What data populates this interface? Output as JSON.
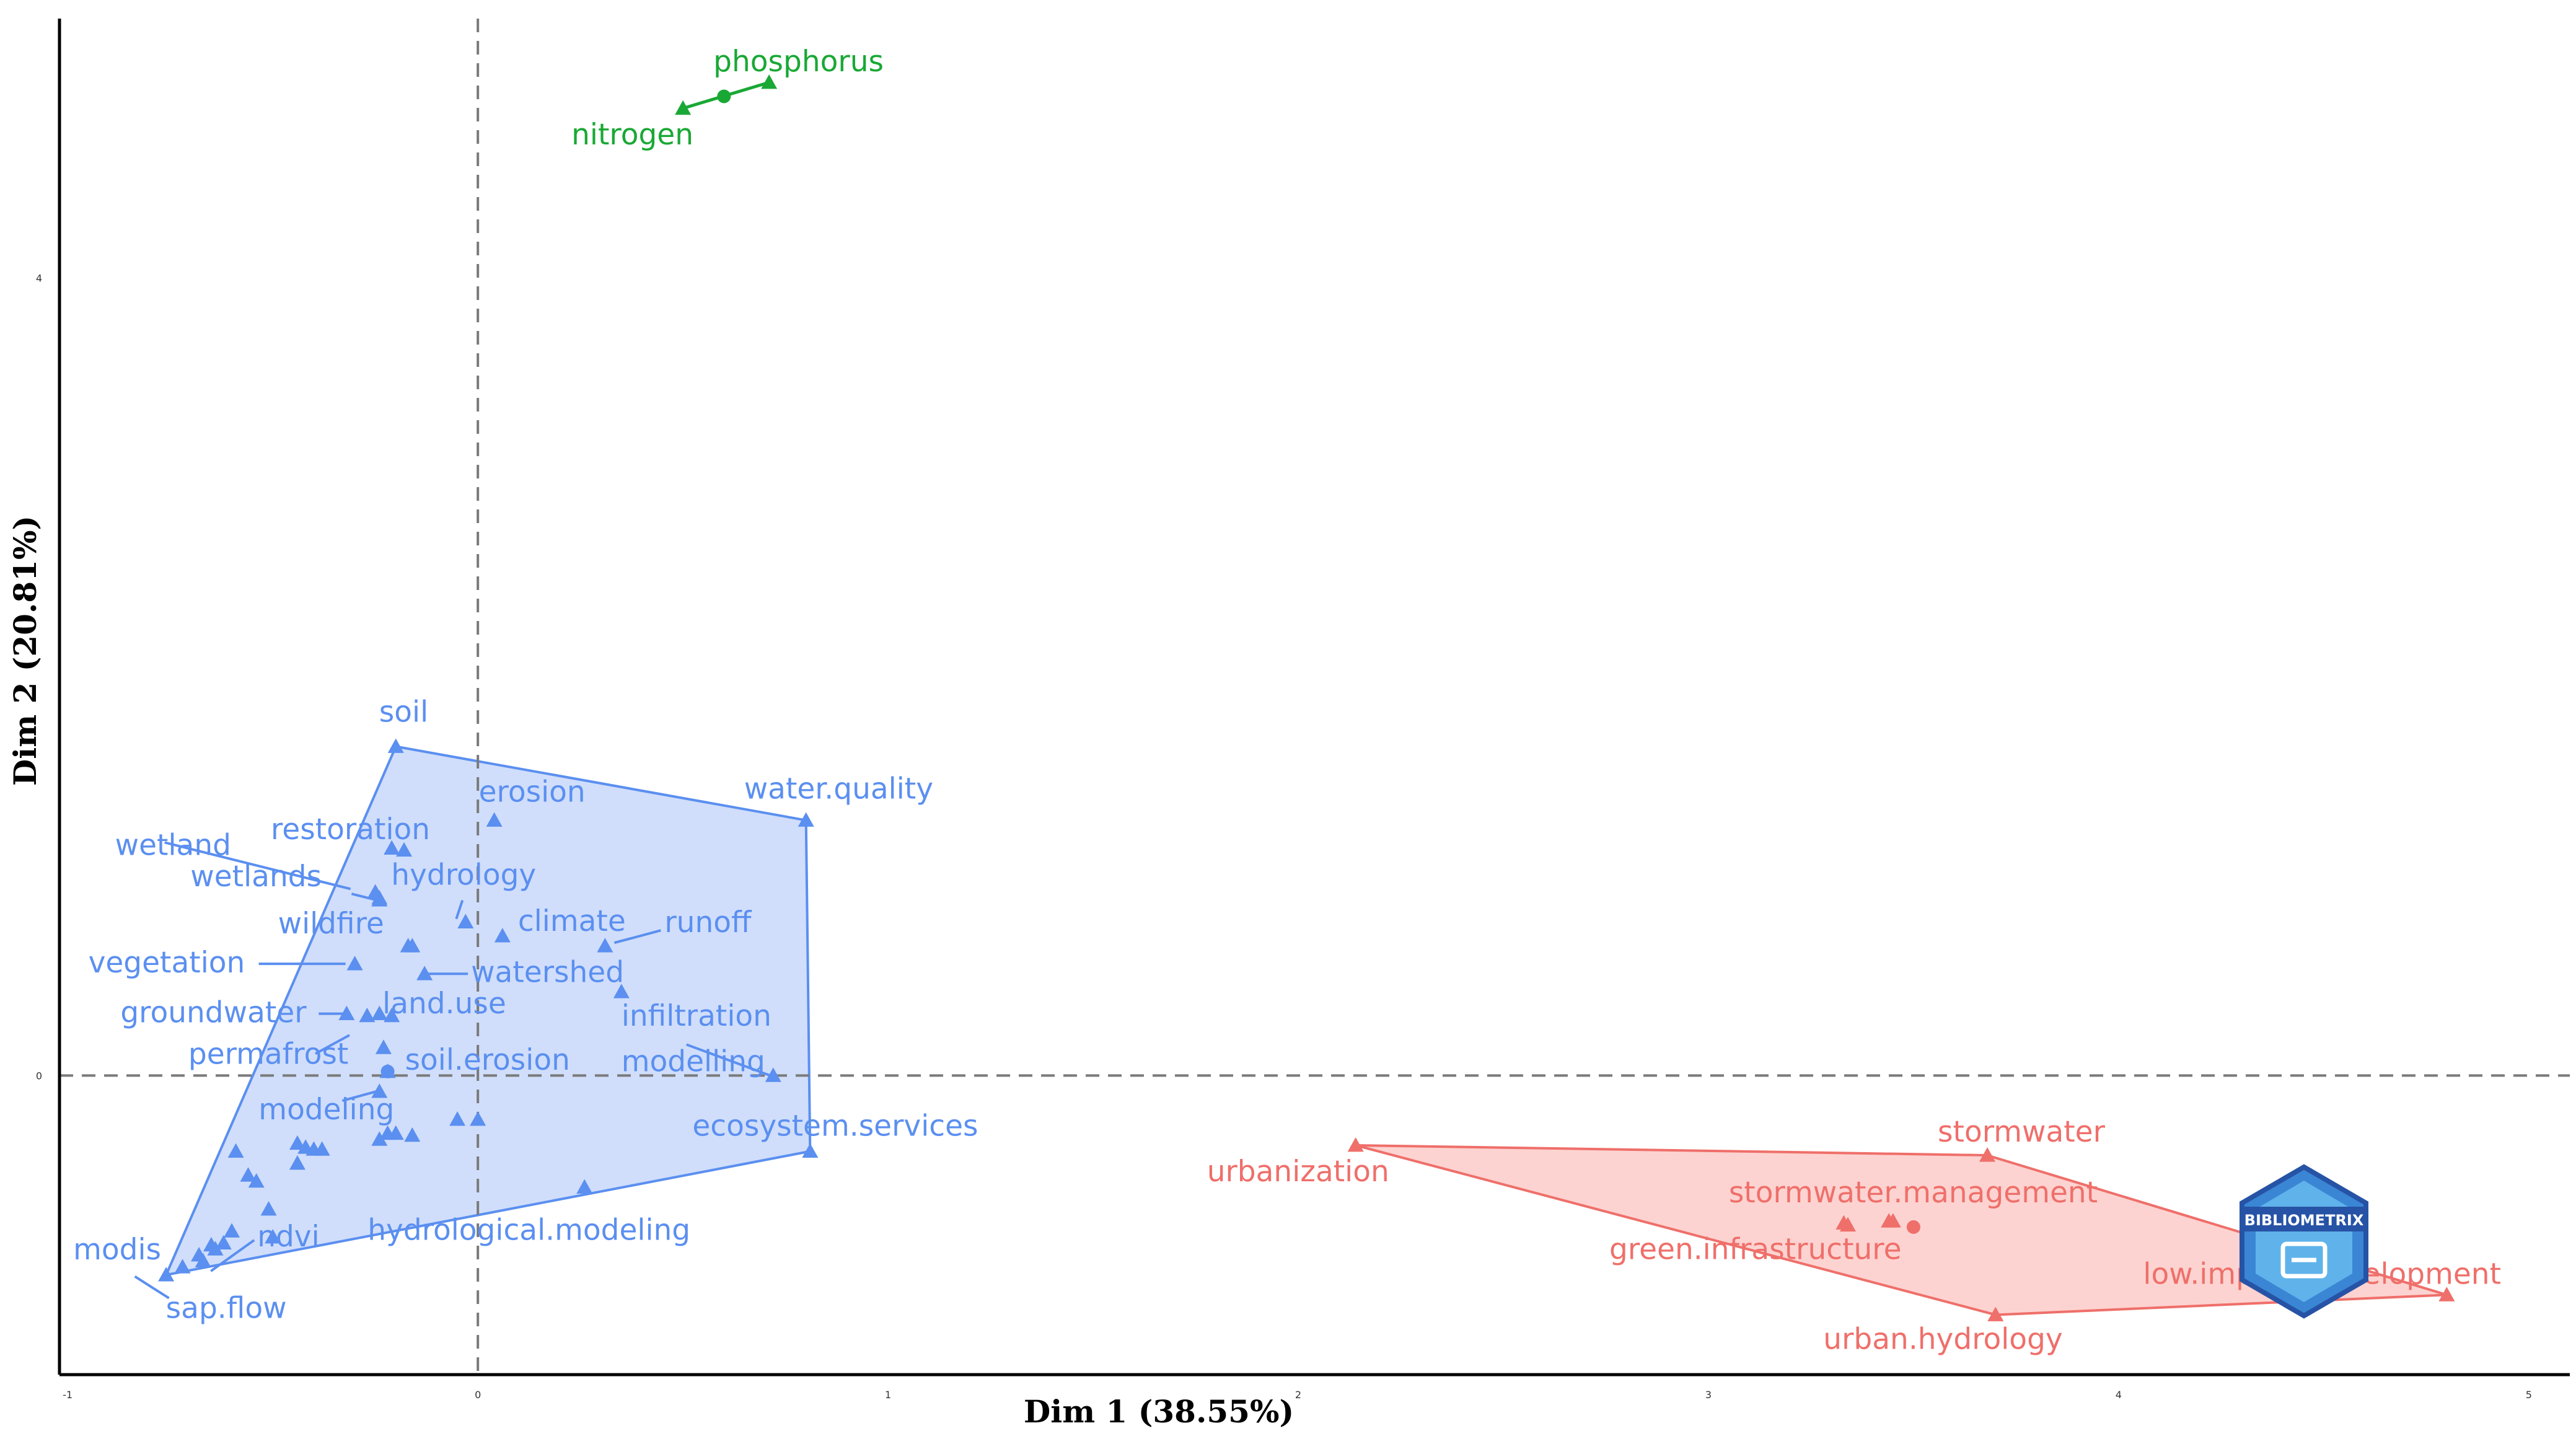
{
  "chart_data": {
    "type": "scatter",
    "title": "",
    "xlabel": "Dim 1 (38.55%)",
    "ylabel": "Dim 2 (20.81%)",
    "xlim": [
      -1.02,
      5.1
    ],
    "ylim": [
      -1.5,
      5.3
    ],
    "xticks": [
      "-1",
      "0",
      "1",
      "2",
      "3",
      "4",
      "5"
    ],
    "yticks": [
      "0",
      "4"
    ],
    "reference_lines": {
      "x": 0,
      "y": 0
    },
    "clusters": [
      {
        "name": "cluster-1",
        "color": "#5b8ff0",
        "fill": "#cddcfb",
        "hull": [
          [
            -0.2,
            1.65
          ],
          [
            0.8,
            1.28
          ],
          [
            0.81,
            -0.38
          ],
          [
            -0.76,
            -1.0
          ]
        ],
        "points": [
          {
            "label": "soil",
            "x": -0.2,
            "y": 1.65
          },
          {
            "label": "water.quality",
            "x": 0.8,
            "y": 1.28
          },
          {
            "label": "ecosystem.services",
            "x": 0.81,
            "y": -0.38
          },
          {
            "label": "modis",
            "x": -0.76,
            "y": -1.0
          },
          {
            "label": "erosion",
            "x": 0.04,
            "y": 1.28
          },
          {
            "label": "restoration",
            "x": -0.18,
            "y": 1.13
          },
          {
            "label": "wetland",
            "x": -0.25,
            "y": 0.92
          },
          {
            "label": "wetlands",
            "x": -0.24,
            "y": 0.88
          },
          {
            "label": "hydrology",
            "x": -0.03,
            "y": 0.77
          },
          {
            "label": "climate",
            "x": 0.06,
            "y": 0.7
          },
          {
            "label": "runoff",
            "x": 0.31,
            "y": 0.65
          },
          {
            "label": "wildfire",
            "x": -0.17,
            "y": 0.65
          },
          {
            "label": "vegetation",
            "x": -0.3,
            "y": 0.56
          },
          {
            "label": "watershed",
            "x": -0.13,
            "y": 0.51
          },
          {
            "label": "infiltration",
            "x": 0.35,
            "y": 0.42
          },
          {
            "label": "groundwater",
            "x": -0.32,
            "y": 0.31
          },
          {
            "label": "land.use",
            "x": -0.21,
            "y": 0.3
          },
          {
            "label": "permafrost",
            "x": -0.23,
            "y": 0.14
          },
          {
            "label": "soil.erosion",
            "x": -0.22,
            "y": 0.02
          },
          {
            "label": "modelling",
            "x": 0.72,
            "y": 0.0
          },
          {
            "label": "modeling",
            "x": -0.24,
            "y": -0.08
          },
          {
            "label": "hydrological.modeling",
            "x": 0.26,
            "y": -0.56
          },
          {
            "label": "ndvi",
            "x": -0.5,
            "y": -0.81
          },
          {
            "label": "sap.flow",
            "x": -0.67,
            "y": -0.93
          }
        ]
      },
      {
        "name": "cluster-2",
        "color": "#ef6f6a",
        "fill": "#fdd1cf",
        "hull": [
          [
            2.14,
            -0.35
          ],
          [
            3.68,
            -0.4
          ],
          [
            4.8,
            -1.1
          ],
          [
            3.7,
            -1.2
          ]
        ],
        "points": [
          {
            "label": "urbanization",
            "x": 2.14,
            "y": -0.35
          },
          {
            "label": "stormwater",
            "x": 3.68,
            "y": -0.4
          },
          {
            "label": "stormwater.management",
            "x": 3.45,
            "y": -0.73
          },
          {
            "label": "green.infrastructure",
            "x": 3.34,
            "y": -0.75
          },
          {
            "label": "low.impact.development",
            "x": 4.8,
            "y": -1.1
          },
          {
            "label": "urban.hydrology",
            "x": 3.7,
            "y": -1.2
          }
        ]
      },
      {
        "name": "cluster-3",
        "color": "#1aa835",
        "points": [
          {
            "label": "phosphorus",
            "x": 0.71,
            "y": 4.98
          },
          {
            "label": "nitrogen",
            "x": 0.5,
            "y": 4.85
          }
        ]
      }
    ],
    "unlabeled_points": {
      "cluster-1": [
        [
          -0.59,
          -0.38
        ],
        [
          -0.56,
          -0.5
        ],
        [
          -0.54,
          -0.53
        ],
        [
          -0.44,
          -0.34
        ],
        [
          -0.42,
          -0.36
        ],
        [
          -0.4,
          -0.37
        ],
        [
          -0.38,
          -0.37
        ],
        [
          -0.44,
          -0.44
        ],
        [
          -0.24,
          -0.32
        ],
        [
          -0.22,
          -0.29
        ],
        [
          -0.2,
          -0.29
        ],
        [
          -0.16,
          -0.3
        ],
        [
          -0.05,
          -0.22
        ],
        [
          0.0,
          -0.22
        ],
        [
          -0.51,
          -0.67
        ],
        [
          -0.6,
          -0.78
        ],
        [
          -0.62,
          -0.84
        ],
        [
          -0.64,
          -0.87
        ],
        [
          -0.68,
          -0.9
        ],
        [
          -0.72,
          -0.96
        ],
        [
          -0.65,
          -0.85
        ],
        [
          -0.21,
          1.14
        ],
        [
          -0.24,
          0.89
        ],
        [
          -0.16,
          0.65
        ],
        [
          -0.27,
          0.3
        ],
        [
          -0.24,
          0.31
        ],
        [
          -0.03,
          0.77
        ]
      ],
      "cluster-2": [
        [
          3.33,
          -0.74
        ],
        [
          3.44,
          -0.73
        ]
      ]
    },
    "cluster_centers": {
      "cluster-1": [
        -0.22,
        0.02
      ],
      "cluster-2": [
        3.5,
        -0.76
      ],
      "cluster-3": [
        0.6,
        4.91
      ]
    },
    "watermark": "BIBLIOMETRIX"
  }
}
